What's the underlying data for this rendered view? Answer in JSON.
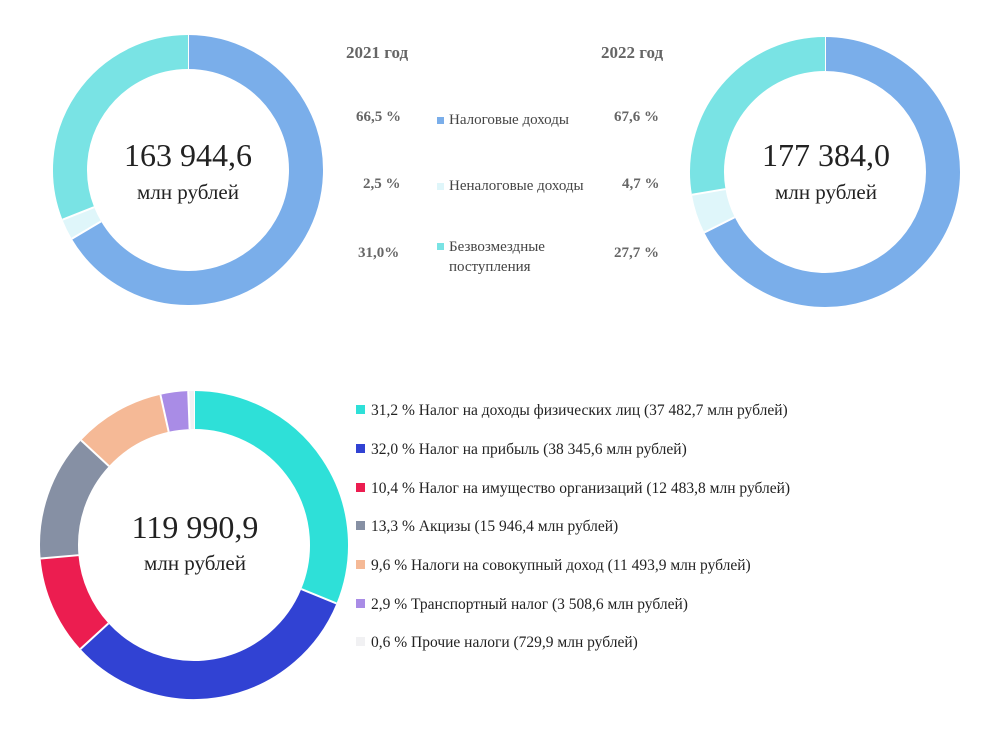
{
  "chart_data": [
    {
      "type": "pie",
      "title": "2021 год",
      "total": "163 944,6",
      "unit": "млн рублей",
      "slices": [
        {
          "label": "Налоговые доходы",
          "value": 66.5,
          "text": "66,5 %",
          "color": "#7aaeea"
        },
        {
          "label": "Неналоговые доходы",
          "value": 2.5,
          "text": "2,5 %",
          "color": "#dff6fa"
        },
        {
          "label": "Безвозмездные поступления",
          "value": 31.0,
          "text": "31,0%",
          "color": "#79e3e4"
        }
      ]
    },
    {
      "type": "pie",
      "title": "2022 год",
      "total": "177 384,0",
      "unit": "млн рублей",
      "slices": [
        {
          "label": "Налоговые доходы",
          "value": 67.6,
          "text": "67,6 %",
          "color": "#7aaeea"
        },
        {
          "label": "Неналоговые доходы",
          "value": 4.7,
          "text": "4,7 %",
          "color": "#dff6fa"
        },
        {
          "label": "Безвозмездные поступления",
          "value": 27.7,
          "text": "27,7 %",
          "color": "#79e3e4"
        }
      ]
    },
    {
      "type": "pie",
      "total": "119 990,9",
      "unit": "млн рублей",
      "slices": [
        {
          "value": 31.2,
          "text": "31,2 %  Налог на доходы физических лиц (37 482,7 млн рублей)",
          "color": "#2ee0d8"
        },
        {
          "value": 32.0,
          "text": "32,0 % Налог на прибыль (38 345,6 млн рублей)",
          "color": "#3142d3"
        },
        {
          "value": 10.4,
          "text": "10,4 % Налог на имущество организаций (12 483,8 млн рублей)",
          "color": "#ec1d50"
        },
        {
          "value": 13.3,
          "text": "13,3 % Акцизы (15 946,4 млн рублей)",
          "color": "#8690a4"
        },
        {
          "value": 9.6,
          "text": "9,6 % Налоги на совокупный доход (11 493,9 млн рублей)",
          "color": "#f5b996"
        },
        {
          "value": 2.9,
          "text": "2,9 % Транспортный налог  (3 508,6 млн рублей)",
          "color": "#a98ce6"
        },
        {
          "value": 0.6,
          "text": "0,6 % Прочие налоги (729,9 млн рублей)",
          "color": "#f1f1f3"
        }
      ]
    }
  ],
  "legend_top": {
    "label_1": "Налоговые доходы",
    "label_2": "Неналоговые доходы",
    "label_3_line1": "Безвозмездные",
    "label_3_line2": "поступления"
  }
}
